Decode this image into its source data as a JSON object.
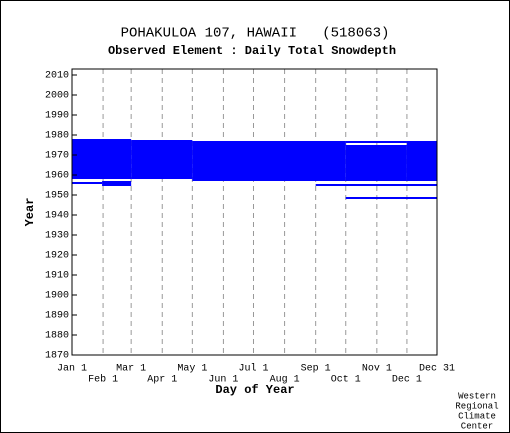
{
  "chart_data": {
    "type": "range",
    "title": "POHAKULOA 107, HAWAII   (518063)",
    "subtitle": "Observed Element : Daily Total Snowdepth",
    "xlabel": "Day of Year",
    "ylabel": "Year",
    "color": "#0000ff",
    "credit": [
      "Western",
      "Regional",
      "Climate",
      "Center"
    ],
    "xlim": [
      1,
      365
    ],
    "ylim": [
      1870,
      2013
    ],
    "xticks": [
      {
        "value": 1,
        "label": "Jan 1"
      },
      {
        "value": 32,
        "label": "Feb 1"
      },
      {
        "value": 60,
        "label": "Mar 1"
      },
      {
        "value": 91,
        "label": "Apr 1"
      },
      {
        "value": 121,
        "label": "May 1"
      },
      {
        "value": 152,
        "label": "Jun 1"
      },
      {
        "value": 182,
        "label": "Jul 1"
      },
      {
        "value": 213,
        "label": "Aug 1"
      },
      {
        "value": 244,
        "label": "Sep 1"
      },
      {
        "value": 274,
        "label": "Oct 1"
      },
      {
        "value": 305,
        "label": "Nov 1"
      },
      {
        "value": 335,
        "label": "Dec 1"
      },
      {
        "value": 365,
        "label": "Dec 31"
      }
    ],
    "yticks": [
      1870,
      1880,
      1890,
      1900,
      1910,
      1920,
      1930,
      1940,
      1950,
      1960,
      1970,
      1980,
      1990,
      2000,
      2010
    ],
    "bars": [
      {
        "x": [
          1,
          60
        ],
        "y": [
          1958,
          1978
        ]
      },
      {
        "x": [
          1,
          31
        ],
        "y": [
          1955.5,
          1956.5
        ]
      },
      {
        "x": [
          31,
          60
        ],
        "y": [
          1954.5,
          1957
        ]
      },
      {
        "x": [
          60,
          121
        ],
        "y": [
          1958,
          1977.5
        ]
      },
      {
        "x": [
          121,
          274
        ],
        "y": [
          1957,
          1977
        ]
      },
      {
        "x": [
          274,
          335
        ],
        "y": [
          1957,
          1975
        ]
      },
      {
        "x": [
          274,
          335
        ],
        "y": [
          1976,
          1977
        ]
      },
      {
        "x": [
          335,
          365
        ],
        "y": [
          1957,
          1977
        ]
      },
      {
        "x": [
          244,
          365
        ],
        "y": [
          1954.5,
          1955.5
        ]
      },
      {
        "x": [
          274,
          365
        ],
        "y": [
          1948,
          1949
        ]
      }
    ]
  }
}
